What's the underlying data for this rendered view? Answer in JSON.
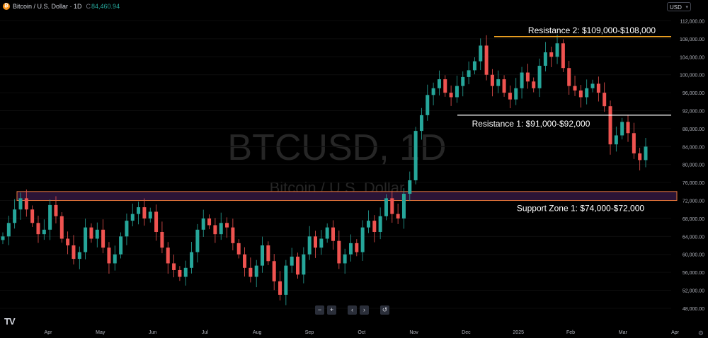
{
  "header": {
    "symbol_title": "Bitcoin / U.S. Dollar · 1D",
    "price_prefix": "C",
    "price": "84,460.94",
    "currency": "USD",
    "icon": "bitcoin-icon"
  },
  "watermark": {
    "line1": "BTCUSD, 1D",
    "line2": "Bitcoin / U.S. Dollar"
  },
  "nav": [
    "−",
    "+",
    "‹",
    "›",
    "↺"
  ],
  "logo": "TV",
  "chart_data": {
    "type": "candlestick",
    "x_ticks": [
      "Apr",
      "May",
      "Jun",
      "Jul",
      "Aug",
      "Sep",
      "Oct",
      "Nov",
      "Dec",
      "2025",
      "Feb",
      "Mar",
      "Apr"
    ],
    "y_ticks": [
      "48,000.00",
      "52,000.00",
      "56,000.00",
      "60,000.00",
      "64,000.00",
      "68,000.00",
      "72,000.00",
      "76,000.00",
      "80,000.00",
      "84,000.00",
      "88,000.00",
      "92,000.00",
      "96,000.00",
      "100,000.00",
      "104,000.00",
      "108,000.00",
      "112,000.00"
    ],
    "ylim": [
      45000,
      113500
    ],
    "colors": {
      "up": "#26a69a",
      "down": "#ef5350",
      "resistance2": "#f5a623",
      "resistance1": "#ffffff",
      "support_fill": "#2b1436",
      "support_border": "#e8773a"
    },
    "annotations": [
      {
        "label": "Resistance 2: $109,000-$108,000",
        "y": 108500
      },
      {
        "label": "Resistance 1: $91,000-$92,000",
        "y": 91000
      },
      {
        "label": "Support Zone 1: $74,000-$72,000",
        "y_low": 72000,
        "y_high": 74000
      }
    ],
    "closes": [
      64000,
      67000,
      70000,
      72500,
      70000,
      67000,
      64500,
      65500,
      71000,
      68500,
      63500,
      62000,
      59000,
      60500,
      66000,
      63500,
      65500,
      61500,
      58000,
      60000,
      64000,
      67500,
      69000,
      70500,
      68000,
      69500,
      65000,
      61500,
      58000,
      56500,
      55000,
      57000,
      60500,
      65500,
      68000,
      66500,
      64500,
      67000,
      66000,
      62500,
      60000,
      57000,
      55000,
      57500,
      62000,
      58500,
      54000,
      51000,
      57500,
      59500,
      55500,
      60000,
      64000,
      61500,
      63500,
      66000,
      63000,
      58000,
      60000,
      62500,
      60500,
      66000,
      67500,
      65000,
      68500,
      72500,
      69000,
      68000,
      73500,
      76500,
      87500,
      91000,
      95500,
      97000,
      99000,
      96000,
      95000,
      97500,
      99500,
      101000,
      103000,
      106500,
      100000,
      97500,
      99000,
      96000,
      94500,
      97000,
      100500,
      98500,
      97000,
      102000,
      105000,
      104000,
      107000,
      101500,
      97500,
      96500,
      95000,
      97000,
      98000,
      96000,
      93000,
      84500,
      86500,
      89500,
      87000,
      82500,
      81000,
      84000
    ]
  }
}
